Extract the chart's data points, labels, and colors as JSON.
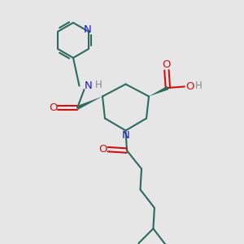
{
  "bg_color": "#e6e6e6",
  "bond_color": "#2d6b5e",
  "n_color": "#1a1acc",
  "o_color": "#cc1111",
  "h_color": "#888888",
  "line_width": 1.5,
  "font_size": 8.5,
  "figsize": [
    3.0,
    3.0
  ],
  "dpi": 100,
  "xlim": [
    0,
    10
  ],
  "ylim": [
    0,
    10
  ]
}
